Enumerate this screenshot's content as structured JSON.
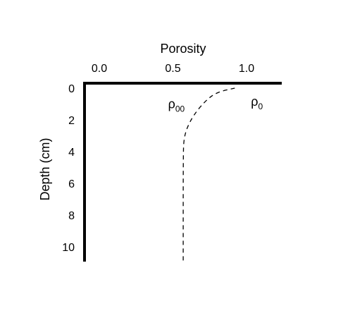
{
  "chart_data": {
    "type": "line",
    "title": "",
    "xlabel": "Porosity",
    "ylabel": "Depth (cm)",
    "x_axis_position": "top",
    "y_axis_inverted": true,
    "xlim": [
      0.0,
      1.35
    ],
    "ylim": [
      0,
      11
    ],
    "x_ticks": [
      0.0,
      0.5,
      1.0
    ],
    "x_tick_labels": [
      "0.0",
      "0.5",
      "1.0"
    ],
    "y_ticks": [
      0,
      2,
      4,
      6,
      8,
      10
    ],
    "y_tick_labels": [
      "0",
      "2",
      "4",
      "6",
      "8",
      "10"
    ],
    "grid": false,
    "legend": "none",
    "series": [
      {
        "style": "dashed",
        "color": "#000000",
        "points": [
          {
            "x": 0.92,
            "y": 0.0
          },
          {
            "x": 0.8,
            "y": 0.25
          },
          {
            "x": 0.72,
            "y": 0.8
          },
          {
            "x": 0.64,
            "y": 1.7
          },
          {
            "x": 0.595,
            "y": 2.5
          },
          {
            "x": 0.575,
            "y": 3.2
          },
          {
            "x": 0.57,
            "y": 4.0
          },
          {
            "x": 0.57,
            "y": 11.0
          }
        ]
      }
    ],
    "annotations": [
      {
        "base": "ρ",
        "sub": "00",
        "x": 0.58,
        "y": 0.9,
        "anchor": "end"
      },
      {
        "base": "ρ",
        "sub": "0",
        "x": 1.03,
        "y": 0.75,
        "anchor": "start"
      }
    ]
  }
}
